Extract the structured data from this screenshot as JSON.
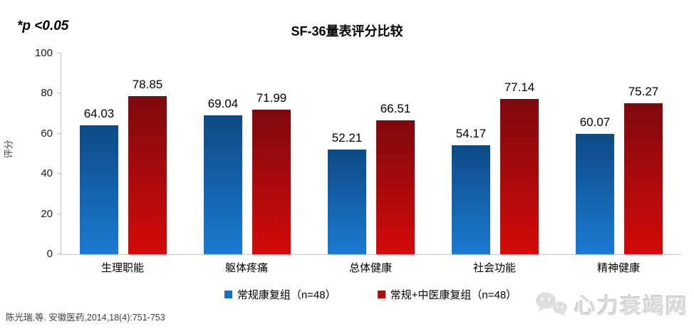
{
  "annotation": "*p <0.05",
  "title": "SF-36量表评分比较",
  "source": "陈光瑞,等. 安徽医药,2014,18(4):751-753",
  "watermark": "心力衰竭网",
  "colors": {
    "axis": "#bfbfbf",
    "blue_gradient_top": "#0d4a85",
    "blue_gradient_bottom": "#1b7ad2",
    "red_gradient_top": "#7e090d",
    "red_gradient_bottom": "#d40a0a",
    "legend_blue": "#1a6fc4",
    "legend_red": "#b00d10"
  },
  "chart_data": {
    "type": "bar",
    "title": "SF-36量表评分比较",
    "categories": [
      "生理职能",
      "躯体疼痛",
      "总体健康",
      "社会功能",
      "精神健康"
    ],
    "series": [
      {
        "name": "常规康复组（n=48）",
        "values": [
          64.03,
          69.04,
          52.21,
          54.17,
          60.07
        ],
        "color": "#1a6fc4",
        "gradient": [
          "#0d4a85",
          "#1b7ad2"
        ]
      },
      {
        "name": "常规+中医康复组（n=48）",
        "values": [
          78.85,
          71.99,
          66.51,
          77.14,
          75.27
        ],
        "color": "#b00d10",
        "gradient": [
          "#7e090d",
          "#d40a0a"
        ]
      }
    ],
    "xlabel": "",
    "ylabel": "评分",
    "ylim": [
      0,
      100
    ],
    "yticks": [
      0,
      20,
      40,
      60,
      80,
      100
    ],
    "grid": false,
    "legend_position": "bottom",
    "value_labels": true,
    "significance_note": "*p <0.05"
  }
}
